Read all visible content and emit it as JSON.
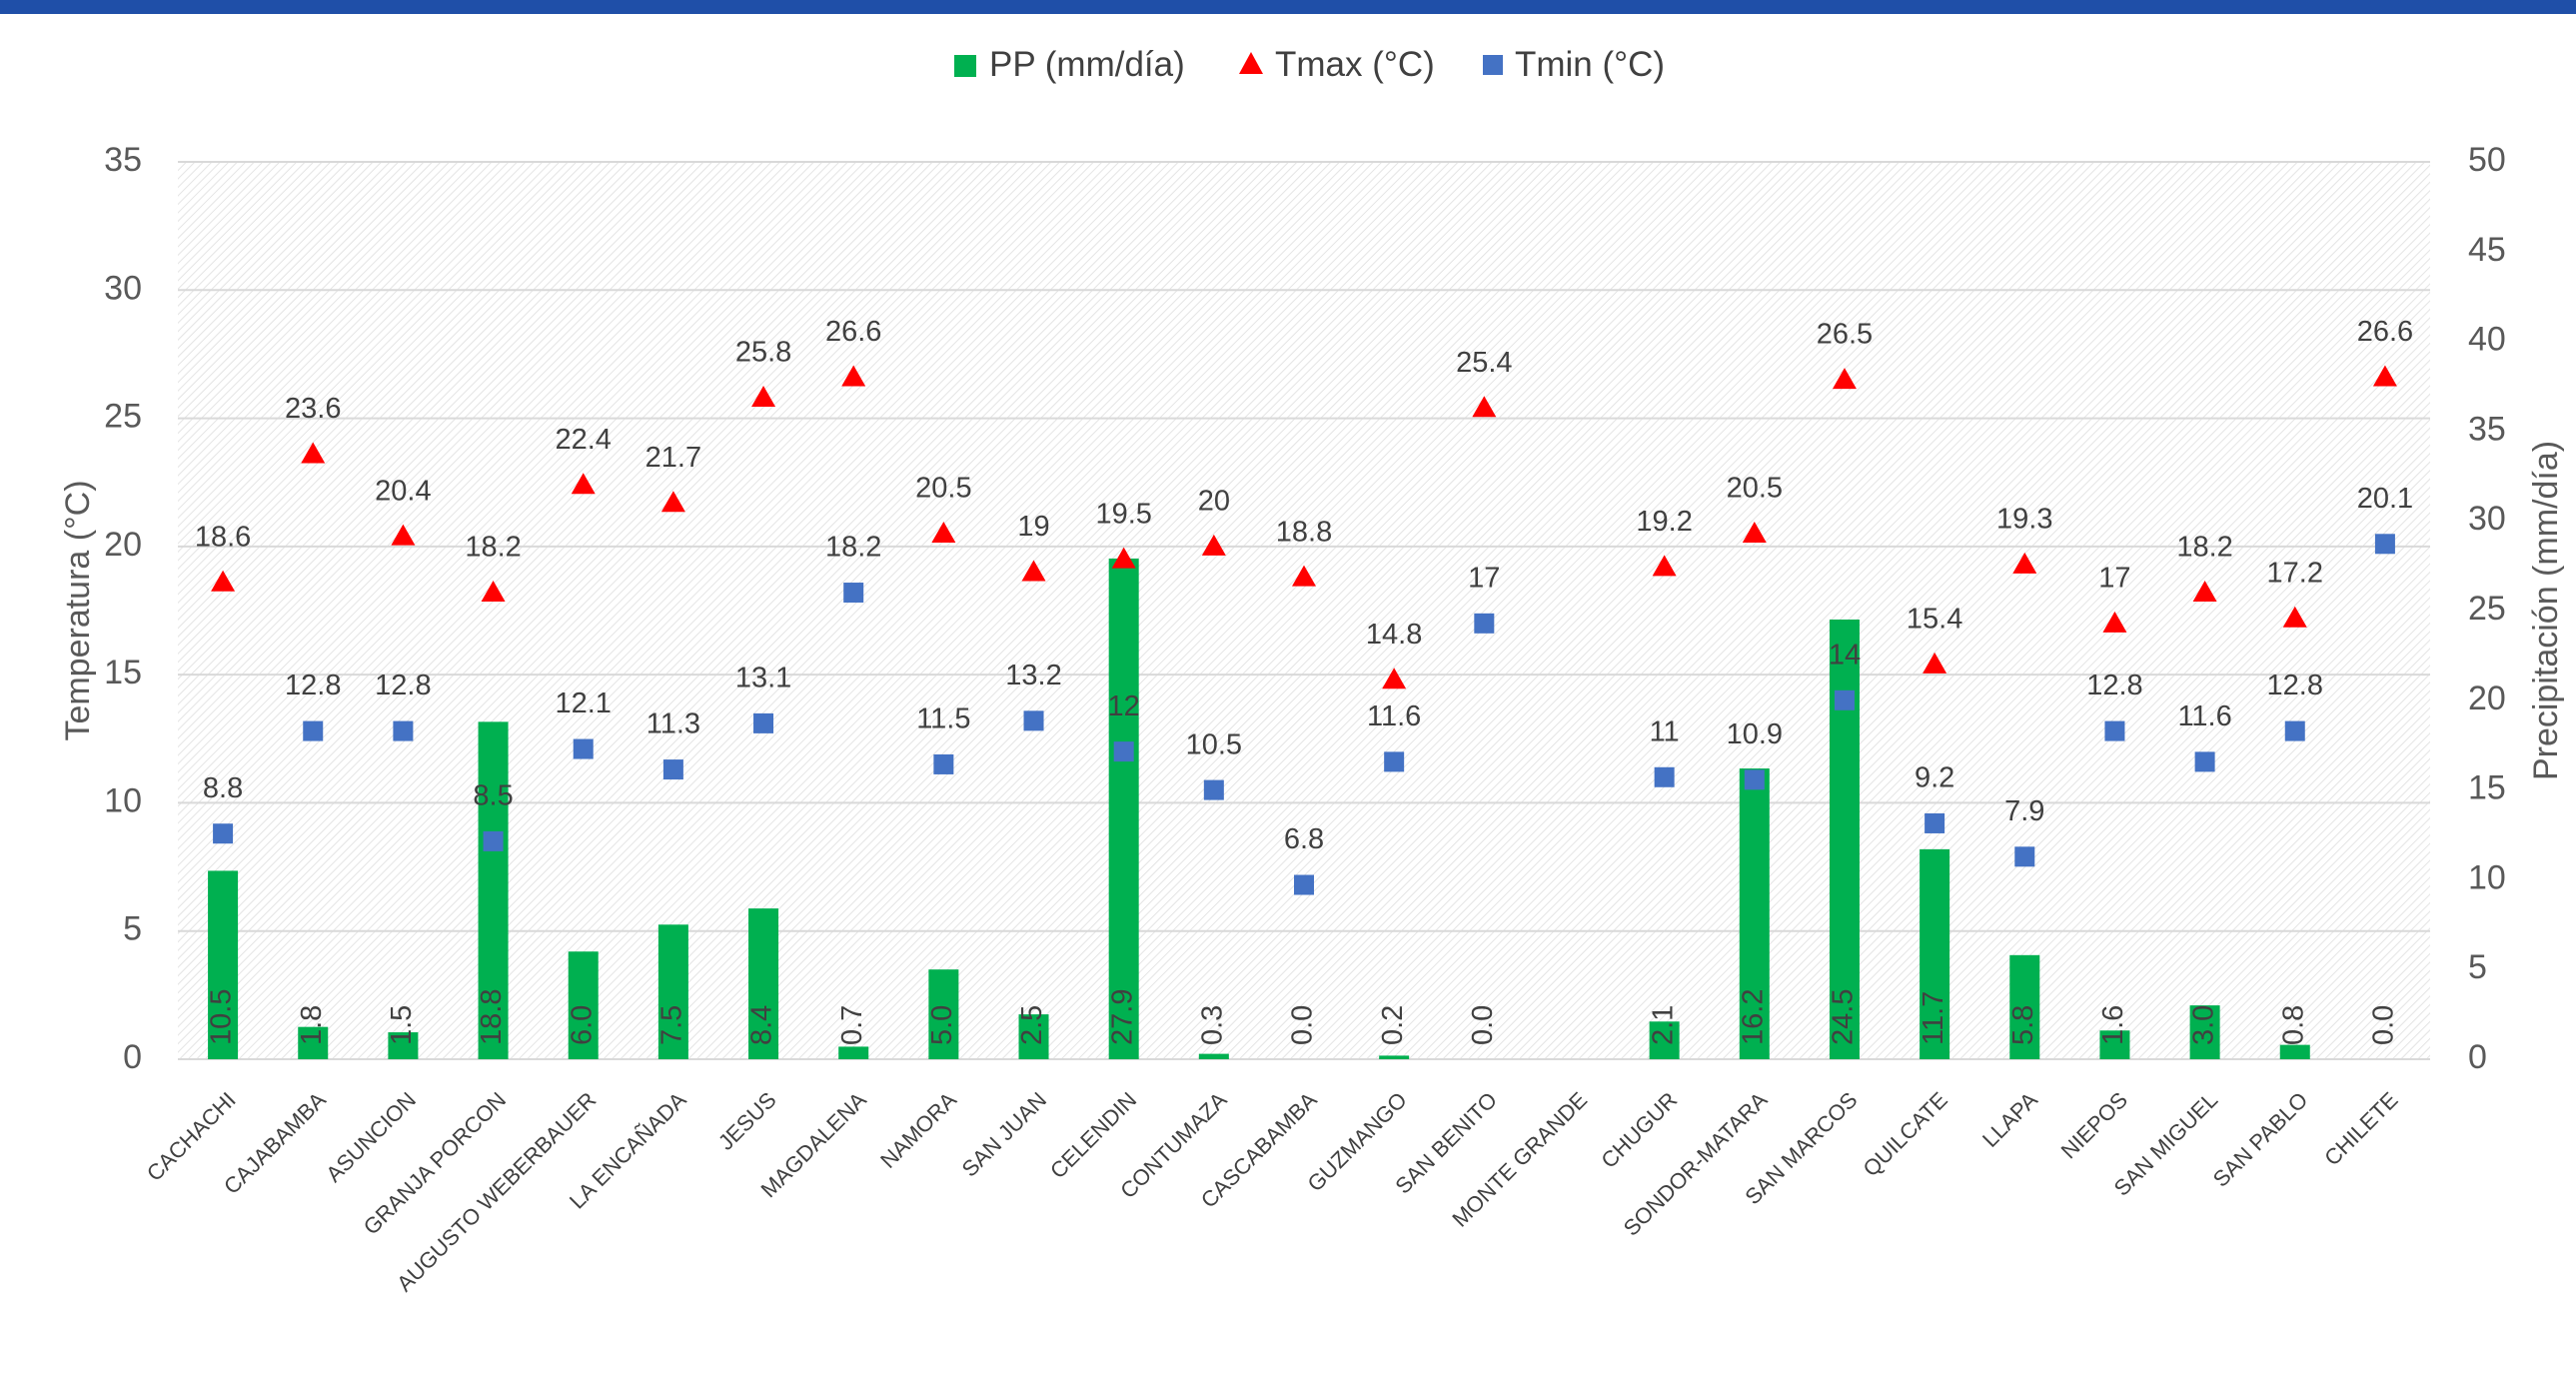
{
  "chart_data": {
    "type": "bar",
    "legend_position": "top",
    "grid": true,
    "ylabel_left": "Temperatura (°C)",
    "ylabel_right": "Precipitación (mm/día)",
    "ylim_left": [
      0,
      35
    ],
    "ylim_right": [
      0,
      50
    ],
    "yticks_left": [
      "0",
      "5",
      "10",
      "15",
      "20",
      "25",
      "30",
      "35"
    ],
    "yticks_right": [
      "0",
      "5",
      "10",
      "15",
      "20",
      "25",
      "30",
      "35",
      "40",
      "45",
      "50"
    ],
    "categories": [
      "CACHACHI",
      "CAJABAMBA",
      "ASUNCION",
      "GRANJA PORCON",
      "AUGUSTO WEBERBAUER",
      "LA ENCAÑADA",
      "JESUS",
      "MAGDALENA",
      "NAMORA",
      "SAN JUAN",
      "CELENDIN",
      "CONTUMAZA",
      "CASCABAMBA",
      "GUZMANGO",
      "SAN BENITO",
      "MONTE GRANDE",
      "CHUGUR",
      "SONDOR-MATARA",
      "SAN MARCOS",
      "QUILCATE",
      "LLAPA",
      "NIEPOS",
      "SAN MIGUEL",
      "SAN PABLO",
      "CHILETE"
    ],
    "series": [
      {
        "name": "PP (mm/día)",
        "kind": "bar",
        "axis": "right",
        "color": "#00b050",
        "values": [
          10.5,
          1.8,
          1.5,
          18.8,
          6.0,
          7.5,
          8.4,
          0.7,
          5.0,
          2.5,
          27.9,
          0.3,
          0.0,
          0.2,
          0.0,
          null,
          2.1,
          16.2,
          24.5,
          11.7,
          5.8,
          1.6,
          3.0,
          0.8,
          0.0
        ],
        "labels": [
          "10.5",
          "1.8",
          "1.5",
          "18.8",
          "6.0",
          "7.5",
          "8.4",
          "0.7",
          "5.0",
          "2.5",
          "27.9",
          "0.3",
          "0.0",
          "0.2",
          "0.0",
          "",
          "2.1",
          "16.2",
          "24.5",
          "11.7",
          "5.8",
          "1.6",
          "3.0",
          "0.8",
          "0.0"
        ]
      },
      {
        "name": "Tmax (°C)",
        "kind": "marker-triangle",
        "axis": "left",
        "color": "#ff0000",
        "values": [
          18.6,
          23.6,
          20.4,
          18.2,
          22.4,
          21.7,
          25.8,
          26.6,
          20.5,
          19,
          19.5,
          20,
          18.8,
          14.8,
          25.4,
          null,
          19.2,
          20.5,
          26.5,
          15.4,
          19.3,
          17,
          18.2,
          17.2,
          26.6
        ],
        "labels": [
          "18.6",
          "23.6",
          "20.4",
          "18.2",
          "22.4",
          "21.7",
          "25.8",
          "26.6",
          "20.5",
          "19",
          "19.5",
          "20",
          "18.8",
          "14.8",
          "25.4",
          "",
          "19.2",
          "20.5",
          "26.5",
          "15.4",
          "19.3",
          "17",
          "18.2",
          "17.2",
          "26.6"
        ]
      },
      {
        "name": "Tmin (°C)",
        "kind": "marker-square",
        "axis": "left",
        "color": "#4472c4",
        "values": [
          8.8,
          12.8,
          12.8,
          8.5,
          12.1,
          11.3,
          13.1,
          18.2,
          11.5,
          13.2,
          12,
          10.5,
          6.8,
          11.6,
          17,
          null,
          11,
          10.9,
          14,
          9.2,
          7.9,
          12.8,
          11.6,
          12.8,
          20.1
        ],
        "labels": [
          "8.8",
          "12.8",
          "12.8",
          "8.5",
          "12.1",
          "11.3",
          "13.1",
          "18.2",
          "11.5",
          "13.2",
          "12",
          "10.5",
          "6.8",
          "11.6",
          "17",
          "",
          "11",
          "10.9",
          "14",
          "9.2",
          "7.9",
          "12.8",
          "11.6",
          "12.8",
          "20.1"
        ]
      }
    ]
  }
}
